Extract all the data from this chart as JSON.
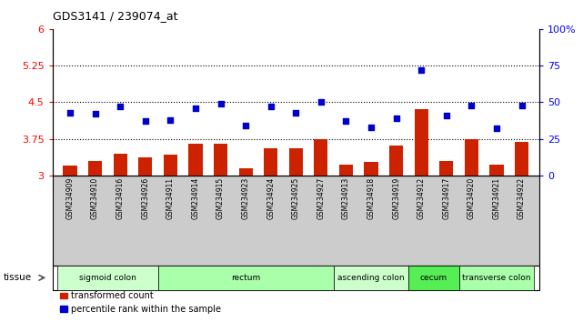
{
  "title": "GDS3141 / 239074_at",
  "samples": [
    "GSM234909",
    "GSM234910",
    "GSM234916",
    "GSM234926",
    "GSM234911",
    "GSM234914",
    "GSM234915",
    "GSM234923",
    "GSM234924",
    "GSM234925",
    "GSM234927",
    "GSM234913",
    "GSM234918",
    "GSM234919",
    "GSM234912",
    "GSM234917",
    "GSM234920",
    "GSM234921",
    "GSM234922"
  ],
  "bar_values": [
    3.2,
    3.3,
    3.45,
    3.38,
    3.42,
    3.65,
    3.65,
    3.15,
    3.55,
    3.55,
    3.75,
    3.22,
    3.28,
    3.62,
    4.35,
    3.3,
    3.75,
    3.22,
    3.68
  ],
  "scatter_values": [
    43,
    42,
    47,
    37,
    38,
    46,
    49,
    34,
    47,
    43,
    50,
    37,
    33,
    39,
    72,
    41,
    48,
    32,
    48
  ],
  "ylim_left": [
    3.0,
    6.0
  ],
  "ylim_right": [
    0,
    100
  ],
  "yticks_left": [
    3.0,
    3.75,
    4.5,
    5.25,
    6.0
  ],
  "yticks_right": [
    0,
    25,
    50,
    75,
    100
  ],
  "hlines": [
    3.75,
    4.5,
    5.25
  ],
  "bar_color": "#cc2200",
  "scatter_color": "#0000cc",
  "tissue_groups": [
    {
      "label": "sigmoid colon",
      "start": 0,
      "end": 4,
      "color": "#ccffcc"
    },
    {
      "label": "rectum",
      "start": 4,
      "end": 11,
      "color": "#aaffaa"
    },
    {
      "label": "ascending colon",
      "start": 11,
      "end": 14,
      "color": "#ccffcc"
    },
    {
      "label": "cecum",
      "start": 14,
      "end": 16,
      "color": "#55ee55"
    },
    {
      "label": "transverse colon",
      "start": 16,
      "end": 19,
      "color": "#aaffaa"
    }
  ],
  "legend_bar_label": "transformed count",
  "legend_scatter_label": "percentile rank within the sample",
  "tissue_label": "tissue",
  "xtick_bg_color": "#cccccc",
  "plot_bg_color": "#ffffff",
  "fig_bg_color": "#ffffff"
}
